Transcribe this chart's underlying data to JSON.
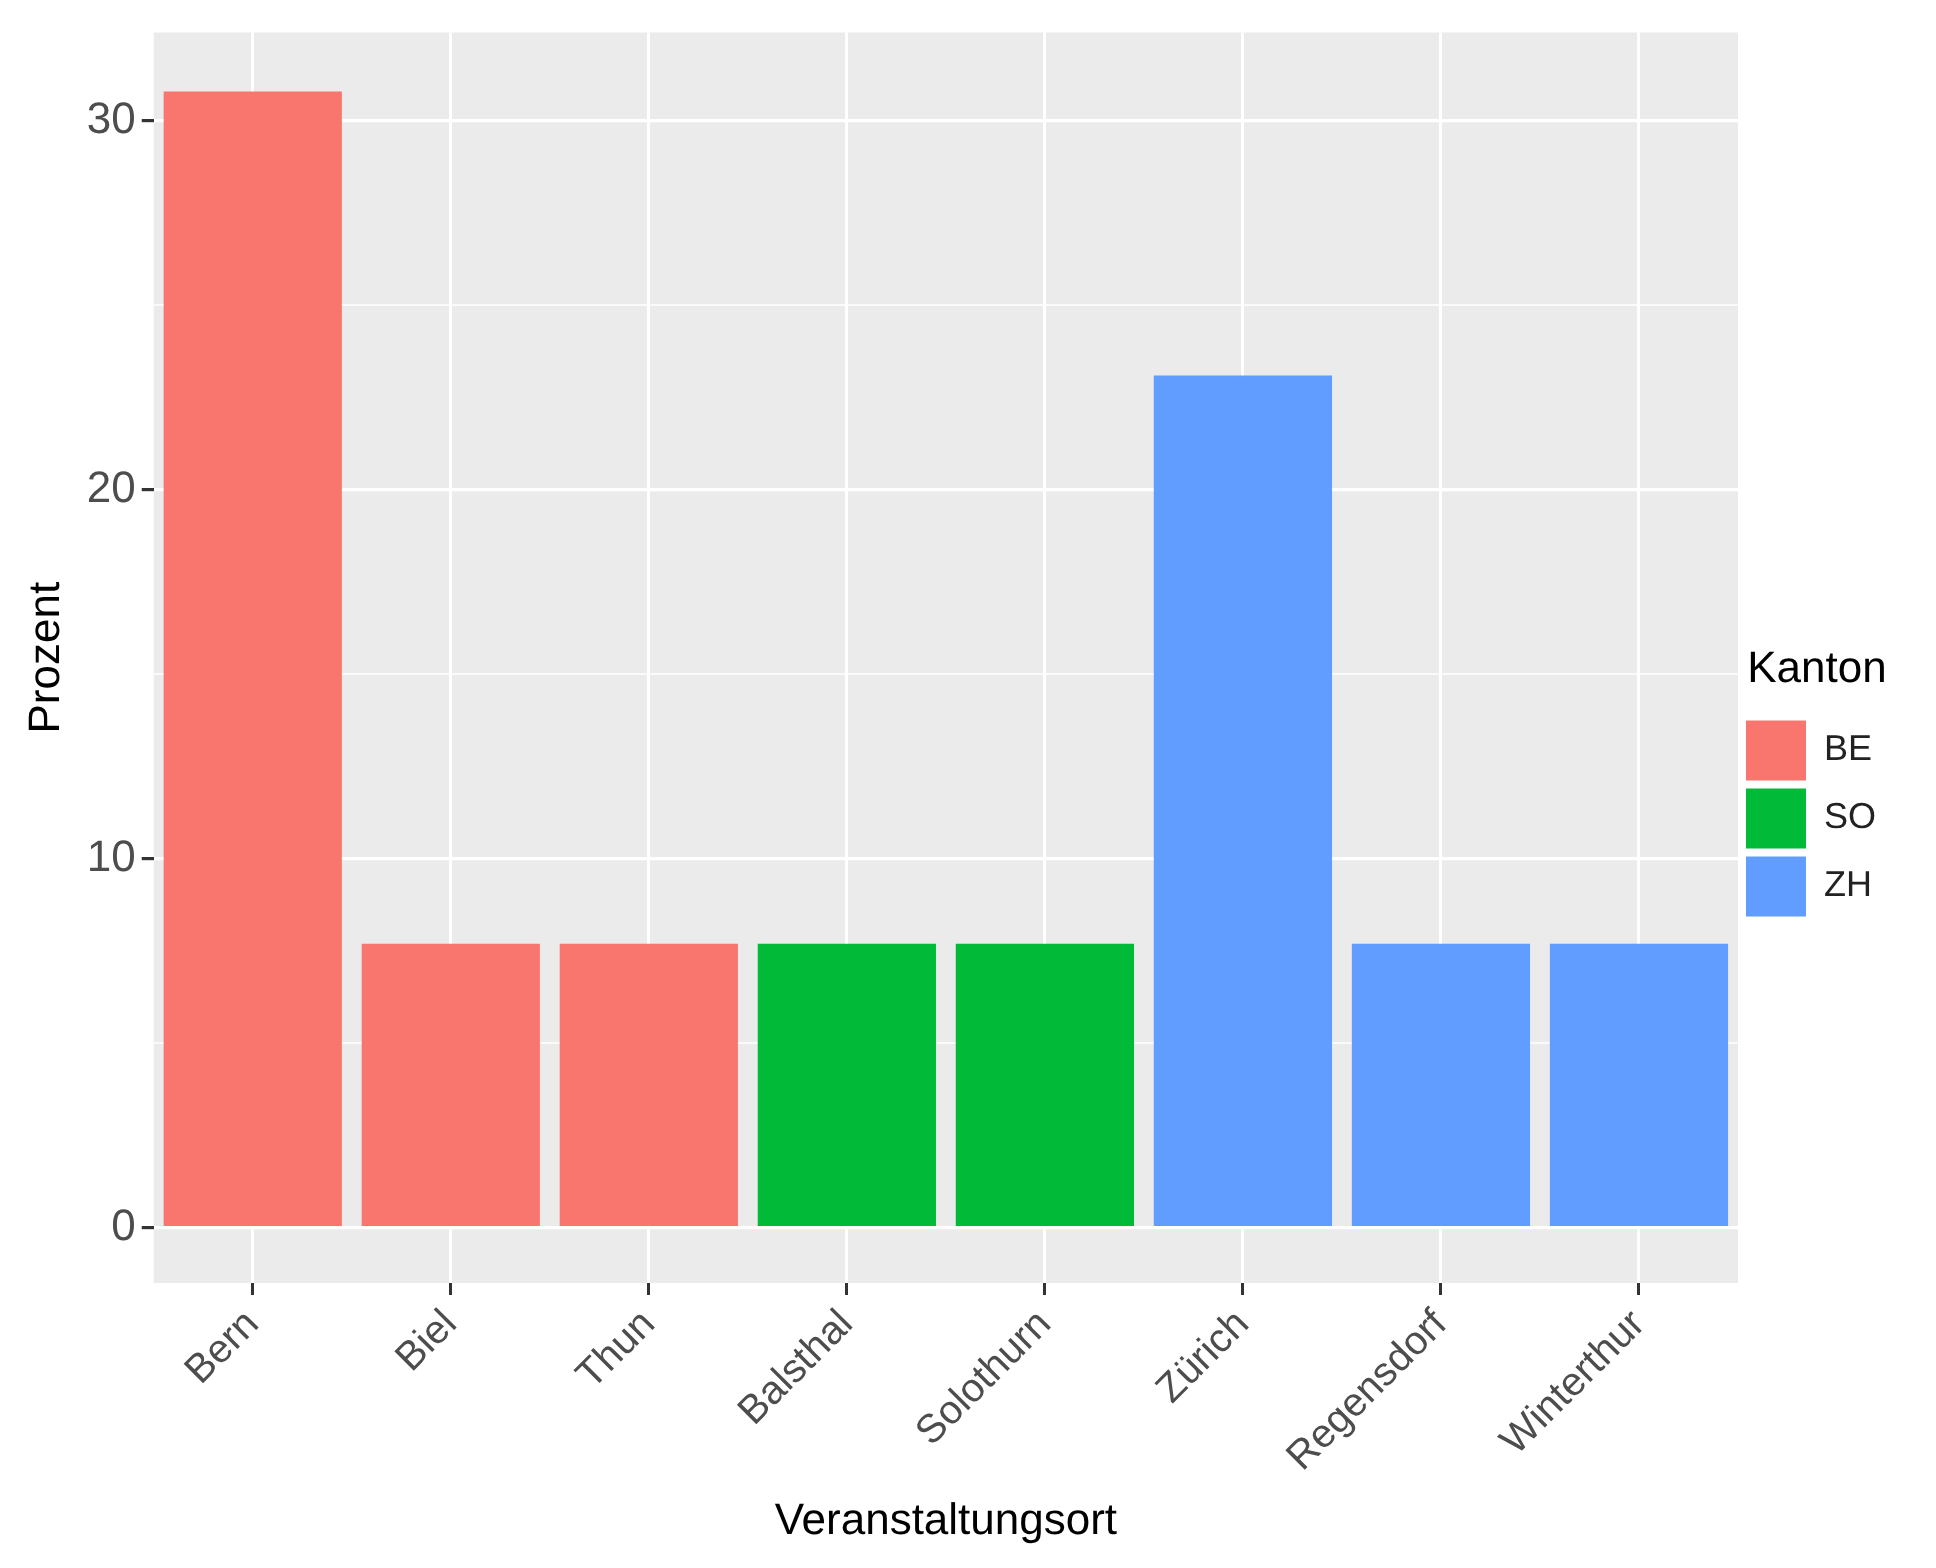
{
  "chart_data": {
    "type": "bar",
    "xlabel": "Veranstaltungsort",
    "ylabel": "Prozent",
    "legend_title": "Kanton",
    "categories": [
      "Bern",
      "Biel",
      "Thun",
      "Balsthal",
      "Solothurn",
      "Zürich",
      "Regensdorf",
      "Winterthur"
    ],
    "series": [
      {
        "name": "BE",
        "color": "#f8766d",
        "values": [
          30.8,
          7.7,
          7.7,
          null,
          null,
          null,
          null,
          null
        ]
      },
      {
        "name": "SO",
        "color": "#00ba38",
        "values": [
          null,
          null,
          null,
          7.7,
          7.7,
          null,
          null,
          null
        ]
      },
      {
        "name": "ZH",
        "color": "#619cff",
        "values": [
          null,
          null,
          null,
          null,
          null,
          23.1,
          7.7,
          7.7
        ]
      }
    ],
    "ylim": [
      -1.5,
      32.4
    ],
    "yticks": [
      0,
      {
        "value": 5,
        "label": null
      },
      10,
      {
        "value": 15,
        "label": null
      },
      20,
      {
        "value": 25,
        "label": null
      },
      30
    ],
    "grid": true,
    "legend": "right"
  }
}
